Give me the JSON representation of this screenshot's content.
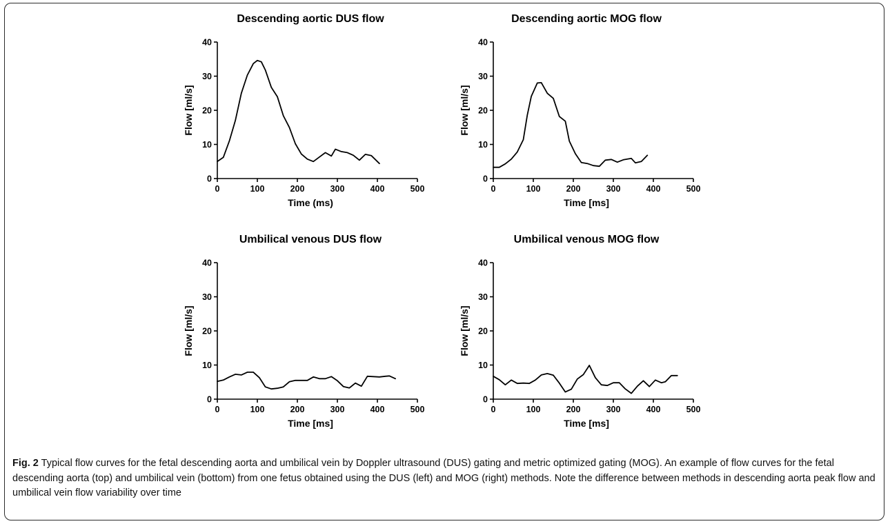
{
  "caption": {
    "label": "Fig. 2",
    "text": "Typical flow curves for the fetal descending aorta and umbilical vein by Doppler ultrasound (DUS) gating and metric optimized gating (MOG). An example of flow curves for the fetal descending aorta (top) and umbilical vein (bottom) from one fetus obtained using the DUS (left) and MOG (right) methods. Note the difference between methods in descending aorta peak flow and umbilical vein flow variability over time"
  },
  "colors": {
    "line": "#000000",
    "frame": "#2a2a2a"
  },
  "chart_data": [
    {
      "id": "aortic-dus",
      "type": "line",
      "title": "Descending aortic DUS flow",
      "xlabel": "Time (ms)",
      "ylabel": "Flow [ml/s]",
      "xlim": [
        0,
        500
      ],
      "ylim": [
        0,
        40
      ],
      "xticks": [
        0,
        100,
        200,
        300,
        400,
        500
      ],
      "yticks": [
        0,
        10,
        20,
        30,
        40
      ],
      "grid": false,
      "x": [
        0,
        15,
        30,
        45,
        60,
        75,
        90,
        100,
        110,
        120,
        135,
        150,
        165,
        180,
        195,
        210,
        225,
        240,
        255,
        270,
        285,
        295,
        310,
        325,
        340,
        355,
        370,
        385,
        405
      ],
      "y": [
        5.0,
        6.2,
        11.0,
        17.0,
        25.0,
        30.3,
        33.7,
        34.6,
        34.2,
        31.8,
        26.7,
        24.0,
        18.4,
        15.0,
        10.2,
        7.2,
        5.7,
        5.0,
        6.3,
        7.6,
        6.6,
        8.6,
        7.9,
        7.6,
        6.8,
        5.4,
        7.1,
        6.7,
        4.4
      ]
    },
    {
      "id": "aortic-mog",
      "type": "line",
      "title": "Descending aortic MOG flow",
      "xlabel": "Time [ms]",
      "ylabel": "Flow [ml/s]",
      "xlim": [
        0,
        500
      ],
      "ylim": [
        0,
        40
      ],
      "xticks": [
        0,
        100,
        200,
        300,
        400,
        500
      ],
      "yticks": [
        0,
        10,
        20,
        30,
        40
      ],
      "grid": false,
      "x": [
        0,
        15,
        30,
        45,
        60,
        75,
        85,
        95,
        110,
        120,
        135,
        150,
        165,
        180,
        190,
        205,
        220,
        235,
        250,
        265,
        280,
        295,
        310,
        325,
        345,
        355,
        370,
        385
      ],
      "y": [
        3.3,
        3.3,
        4.3,
        5.7,
        7.8,
        11.4,
        18.6,
        24.1,
        28.0,
        28.1,
        25.0,
        23.5,
        18.2,
        16.8,
        11.0,
        7.3,
        4.7,
        4.4,
        3.8,
        3.6,
        5.4,
        5.6,
        4.8,
        5.5,
        5.9,
        4.6,
        5.0,
        6.8
      ]
    },
    {
      "id": "umbilical-dus",
      "type": "line",
      "title": "Umbilical venous DUS flow",
      "xlabel": "Time [ms]",
      "ylabel": "Flow [ml/s]",
      "xlim": [
        0,
        500
      ],
      "ylim": [
        0,
        40
      ],
      "xticks": [
        0,
        100,
        200,
        300,
        400,
        500
      ],
      "yticks": [
        0,
        10,
        20,
        30,
        40
      ],
      "grid": false,
      "x": [
        0,
        15,
        30,
        45,
        60,
        75,
        90,
        105,
        120,
        135,
        150,
        165,
        180,
        195,
        210,
        225,
        240,
        255,
        270,
        285,
        300,
        315,
        330,
        345,
        360,
        375,
        390,
        405,
        420,
        430,
        445
      ],
      "y": [
        5.2,
        5.6,
        6.5,
        7.3,
        7.1,
        7.9,
        7.9,
        6.3,
        3.6,
        3.0,
        3.2,
        3.6,
        5.1,
        5.5,
        5.5,
        5.5,
        6.5,
        6.0,
        6.0,
        6.6,
        5.4,
        3.7,
        3.3,
        4.7,
        3.8,
        6.7,
        6.6,
        6.5,
        6.7,
        6.8,
        6.0
      ]
    },
    {
      "id": "umbilical-mog",
      "type": "line",
      "title": "Umbilical venous MOG flow",
      "xlabel": "Time [ms]",
      "ylabel": "Flow [ml/s]",
      "xlim": [
        0,
        500
      ],
      "ylim": [
        0,
        40
      ],
      "xticks": [
        0,
        100,
        200,
        300,
        400,
        500
      ],
      "yticks": [
        0,
        10,
        20,
        30,
        40
      ],
      "grid": false,
      "x": [
        0,
        15,
        30,
        45,
        60,
        75,
        90,
        105,
        120,
        135,
        150,
        165,
        180,
        195,
        210,
        225,
        240,
        255,
        270,
        285,
        300,
        315,
        330,
        345,
        360,
        375,
        390,
        405,
        420,
        430,
        445,
        460
      ],
      "y": [
        6.7,
        5.7,
        4.2,
        5.6,
        4.6,
        4.7,
        4.6,
        5.6,
        7.1,
        7.5,
        7.0,
        4.7,
        2.1,
        2.9,
        5.9,
        7.2,
        9.9,
        6.3,
        4.2,
        4.0,
        4.8,
        4.8,
        3.0,
        1.7,
        3.8,
        5.4,
        3.7,
        5.6,
        4.8,
        5.1,
        6.9,
        6.9
      ]
    }
  ]
}
